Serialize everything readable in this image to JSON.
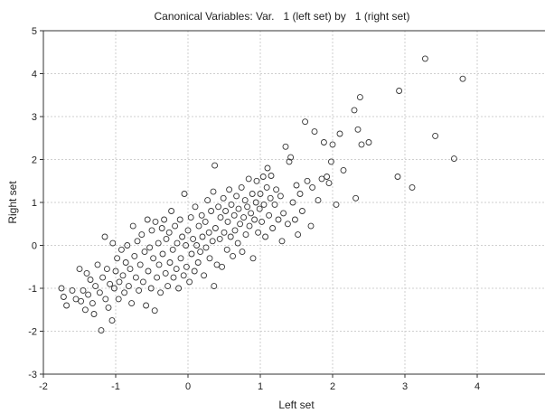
{
  "chart_data": {
    "type": "scatter",
    "title": "Canonical Variables: Var.   1 (left set) by   1 (right set)",
    "xlabel": "Left set",
    "ylabel": "Right set",
    "xlim": [
      -2,
      5
    ],
    "ylim": [
      -3,
      5
    ],
    "xticks": [
      -2,
      -1,
      0,
      1,
      2,
      3,
      4
    ],
    "yticks": [
      -3,
      -2,
      -1,
      0,
      1,
      2,
      3,
      4,
      5
    ],
    "grid": true,
    "marker": "open-circle",
    "points": [
      [
        -1.75,
        -1.0
      ],
      [
        -1.72,
        -1.2
      ],
      [
        -1.68,
        -1.4
      ],
      [
        -1.6,
        -1.05
      ],
      [
        -1.55,
        -1.25
      ],
      [
        -1.5,
        -0.55
      ],
      [
        -1.48,
        -1.3
      ],
      [
        -1.45,
        -1.05
      ],
      [
        -1.42,
        -1.5
      ],
      [
        -1.4,
        -0.65
      ],
      [
        -1.38,
        -1.15
      ],
      [
        -1.35,
        -0.8
      ],
      [
        -1.32,
        -1.35
      ],
      [
        -1.3,
        -1.6
      ],
      [
        -1.28,
        -0.95
      ],
      [
        -1.25,
        -0.45
      ],
      [
        -1.22,
        -1.1
      ],
      [
        -1.2,
        -1.98
      ],
      [
        -1.18,
        -0.75
      ],
      [
        -1.15,
        0.2
      ],
      [
        -1.14,
        -1.25
      ],
      [
        -1.12,
        -0.55
      ],
      [
        -1.1,
        -1.45
      ],
      [
        -1.08,
        -0.9
      ],
      [
        -1.05,
        -1.75
      ],
      [
        -1.04,
        0.05
      ],
      [
        -1.02,
        -1.0
      ],
      [
        -1.0,
        -0.6
      ],
      [
        -0.98,
        -0.3
      ],
      [
        -0.96,
        -1.25
      ],
      [
        -0.95,
        -0.85
      ],
      [
        -0.92,
        -0.1
      ],
      [
        -0.9,
        -0.7
      ],
      [
        -0.88,
        -1.1
      ],
      [
        -0.86,
        -0.4
      ],
      [
        -0.84,
        0.0
      ],
      [
        -0.82,
        -0.95
      ],
      [
        -0.8,
        -0.55
      ],
      [
        -0.78,
        -1.35
      ],
      [
        -0.76,
        0.45
      ],
      [
        -0.74,
        -0.25
      ],
      [
        -0.72,
        -0.75
      ],
      [
        -0.7,
        0.1
      ],
      [
        -0.68,
        -1.05
      ],
      [
        -0.66,
        -0.45
      ],
      [
        -0.64,
        0.25
      ],
      [
        -0.62,
        -0.85
      ],
      [
        -0.6,
        -0.15
      ],
      [
        -0.58,
        -1.4
      ],
      [
        -0.56,
        0.6
      ],
      [
        -0.55,
        -0.6
      ],
      [
        -0.53,
        -0.05
      ],
      [
        -0.51,
        -1.0
      ],
      [
        -0.5,
        0.35
      ],
      [
        -0.48,
        -0.3
      ],
      [
        -0.46,
        -1.52
      ],
      [
        -0.45,
        0.55
      ],
      [
        -0.43,
        -0.75
      ],
      [
        -0.41,
        0.05
      ],
      [
        -0.4,
        -0.45
      ],
      [
        -0.38,
        -1.1
      ],
      [
        -0.36,
        0.4
      ],
      [
        -0.35,
        -0.2
      ],
      [
        -0.33,
        0.6
      ],
      [
        -0.31,
        -0.65
      ],
      [
        -0.3,
        0.15
      ],
      [
        -0.28,
        -0.95
      ],
      [
        -0.26,
        0.3
      ],
      [
        -0.25,
        -0.4
      ],
      [
        -0.23,
        0.8
      ],
      [
        -0.21,
        -0.1
      ],
      [
        -0.2,
        -0.75
      ],
      [
        -0.18,
        0.45
      ],
      [
        -0.16,
        -0.55
      ],
      [
        -0.15,
        0.05
      ],
      [
        -0.13,
        -1.0
      ],
      [
        -0.11,
        0.6
      ],
      [
        -0.1,
        -0.3
      ],
      [
        -0.08,
        0.2
      ],
      [
        -0.06,
        -0.7
      ],
      [
        -0.05,
        1.2
      ],
      [
        -0.03,
        0.0
      ],
      [
        -0.02,
        -0.5
      ],
      [
        0.0,
        0.35
      ],
      [
        0.02,
        -0.85
      ],
      [
        0.04,
        0.65
      ],
      [
        0.05,
        -0.2
      ],
      [
        0.07,
        0.15
      ],
      [
        0.09,
        -0.6
      ],
      [
        0.1,
        0.9
      ],
      [
        0.12,
        0.0
      ],
      [
        0.14,
        -0.4
      ],
      [
        0.15,
        0.45
      ],
      [
        0.17,
        -0.15
      ],
      [
        0.19,
        0.7
      ],
      [
        0.2,
        0.2
      ],
      [
        0.22,
        -0.7
      ],
      [
        0.24,
        0.55
      ],
      [
        0.25,
        -0.05
      ],
      [
        0.27,
        1.05
      ],
      [
        0.29,
        0.3
      ],
      [
        0.3,
        -0.3
      ],
      [
        0.32,
        0.8
      ],
      [
        0.34,
        0.1
      ],
      [
        0.35,
        1.25
      ],
      [
        0.36,
        -0.95
      ],
      [
        0.37,
        1.86
      ],
      [
        0.38,
        0.4
      ],
      [
        0.4,
        -0.45
      ],
      [
        0.42,
        0.9
      ],
      [
        0.44,
        0.15
      ],
      [
        0.45,
        0.65
      ],
      [
        0.47,
        -0.5
      ],
      [
        0.49,
        1.1
      ],
      [
        0.5,
        0.3
      ],
      [
        0.52,
        0.8
      ],
      [
        0.54,
        -0.1
      ],
      [
        0.55,
        0.55
      ],
      [
        0.57,
        1.3
      ],
      [
        0.59,
        0.2
      ],
      [
        0.6,
        0.95
      ],
      [
        0.62,
        -0.25
      ],
      [
        0.64,
        0.7
      ],
      [
        0.65,
        0.35
      ],
      [
        0.67,
        1.15
      ],
      [
        0.69,
        0.05
      ],
      [
        0.7,
        0.85
      ],
      [
        0.72,
        0.5
      ],
      [
        0.74,
        1.35
      ],
      [
        0.75,
        -0.15
      ],
      [
        0.77,
        0.65
      ],
      [
        0.79,
        1.05
      ],
      [
        0.8,
        0.25
      ],
      [
        0.82,
        0.9
      ],
      [
        0.84,
        1.55
      ],
      [
        0.85,
        0.45
      ],
      [
        0.87,
        0.75
      ],
      [
        0.89,
        1.2
      ],
      [
        0.9,
        -0.3
      ],
      [
        0.92,
        0.6
      ],
      [
        0.94,
        1.0
      ],
      [
        0.95,
        1.5
      ],
      [
        0.97,
        0.3
      ],
      [
        0.99,
        0.85
      ],
      [
        1.0,
        1.2
      ],
      [
        1.02,
        0.55
      ],
      [
        1.04,
        1.6
      ],
      [
        1.05,
        0.95
      ],
      [
        1.07,
        0.2
      ],
      [
        1.09,
        1.35
      ],
      [
        1.1,
        1.8
      ],
      [
        1.12,
        0.7
      ],
      [
        1.14,
        1.1
      ],
      [
        1.15,
        1.62
      ],
      [
        1.17,
        0.4
      ],
      [
        1.2,
        0.95
      ],
      [
        1.22,
        1.3
      ],
      [
        1.25,
        0.6
      ],
      [
        1.28,
        1.15
      ],
      [
        1.3,
        0.1
      ],
      [
        1.32,
        0.75
      ],
      [
        1.35,
        2.3
      ],
      [
        1.38,
        0.5
      ],
      [
        1.4,
        1.95
      ],
      [
        1.42,
        2.05
      ],
      [
        1.45,
        1.0
      ],
      [
        1.48,
        0.6
      ],
      [
        1.5,
        1.4
      ],
      [
        1.52,
        0.25
      ],
      [
        1.55,
        1.2
      ],
      [
        1.58,
        0.8
      ],
      [
        1.62,
        2.88
      ],
      [
        1.65,
        1.5
      ],
      [
        1.7,
        0.45
      ],
      [
        1.72,
        1.35
      ],
      [
        1.75,
        2.65
      ],
      [
        1.8,
        1.05
      ],
      [
        1.85,
        1.55
      ],
      [
        1.88,
        2.4
      ],
      [
        1.92,
        1.6
      ],
      [
        1.95,
        1.45
      ],
      [
        1.98,
        1.95
      ],
      [
        2.0,
        2.35
      ],
      [
        2.05,
        0.95
      ],
      [
        2.1,
        2.6
      ],
      [
        2.15,
        1.75
      ],
      [
        2.3,
        3.15
      ],
      [
        2.32,
        1.1
      ],
      [
        2.35,
        2.7
      ],
      [
        2.38,
        3.45
      ],
      [
        2.4,
        2.35
      ],
      [
        2.5,
        2.4
      ],
      [
        2.9,
        1.6
      ],
      [
        2.92,
        3.6
      ],
      [
        3.1,
        1.35
      ],
      [
        3.28,
        4.35
      ],
      [
        3.42,
        2.55
      ],
      [
        3.68,
        2.02
      ],
      [
        3.8,
        3.88
      ]
    ]
  }
}
